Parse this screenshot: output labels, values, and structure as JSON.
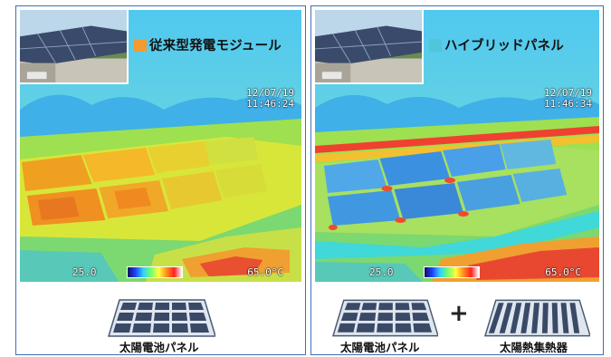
{
  "left_panel": {
    "title": "従来型発電モジュール",
    "title_color": "#f29b30",
    "timestamp_date": "12/07/19",
    "timestamp_time": "11:46:24",
    "scale_min": "25.0",
    "scale_max": "65.0°C",
    "captions": [
      "太陽電池パネル"
    ]
  },
  "right_panel": {
    "title": "ハイブリッドパネル",
    "title_color": "#4fc6da",
    "timestamp_date": "12/07/19",
    "timestamp_time": "11:46:34",
    "scale_min": "25.0",
    "scale_max": "65.0°C",
    "captions": [
      "太陽電池パネル",
      "太陽熱集熱器"
    ]
  },
  "border_color": "#3f6fb5"
}
